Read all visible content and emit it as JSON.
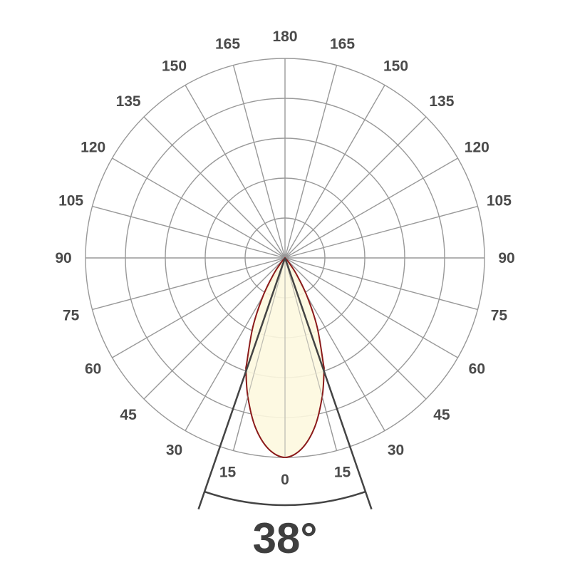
{
  "chart_data": {
    "type": "polar",
    "angle_unit": "degrees",
    "angle_ticks": [
      0,
      15,
      30,
      45,
      60,
      75,
      90,
      105,
      120,
      135,
      150,
      165,
      180
    ],
    "ring_count": 5,
    "grid": true,
    "series": [
      {
        "angles": [
          0,
          5,
          10,
          15,
          19,
          20,
          25,
          30,
          35,
          40,
          45
        ],
        "relative_intensity": [
          1.0,
          0.96,
          0.86,
          0.72,
          0.6,
          0.56,
          0.38,
          0.22,
          0.1,
          0.03,
          0.0
        ],
        "fill": "#fdf8df",
        "stroke": "#8b1a1a"
      }
    ],
    "beam_angle": 38,
    "beam_angle_label": "38°",
    "grid_color": "#999999",
    "beam_line_color": "#444444"
  }
}
